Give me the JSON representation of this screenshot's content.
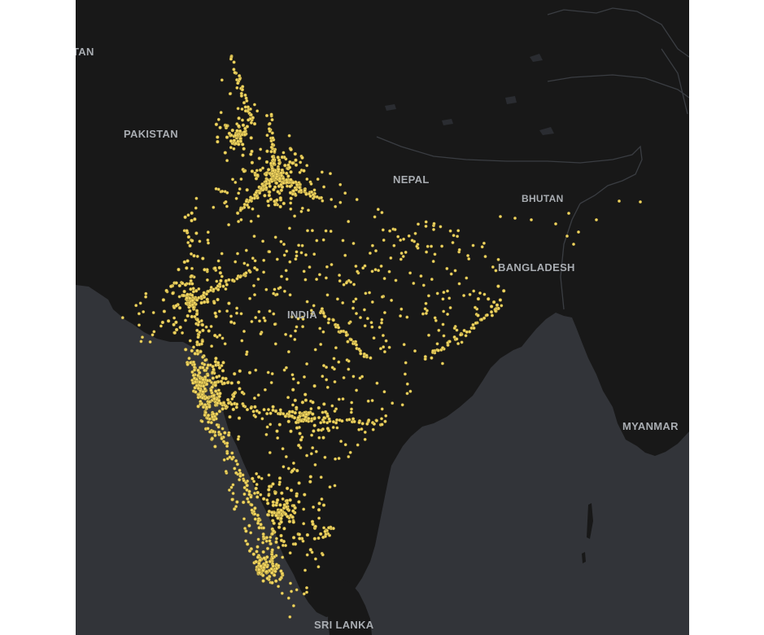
{
  "map": {
    "labels": {
      "pakistan_partial": "TAN",
      "pakistan": "PAKISTAN",
      "nepal": "NEPAL",
      "bhutan": "BHUTAN",
      "bangladesh": "BANGLADESH",
      "india": "INDIA",
      "myanmar": "MYANMAR",
      "sri_lanka": "SRI LANKA"
    },
    "colors": {
      "land": "#181818",
      "water": "#323439",
      "border": "#3a3d42",
      "label": "#a9adb2",
      "point": "#f1d560"
    },
    "points_layer": "yellow dots marking locations across India"
  }
}
